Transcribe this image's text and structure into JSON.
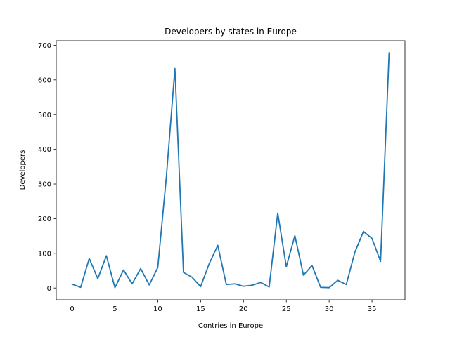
{
  "chart_data": {
    "type": "line",
    "title": "Developers by states in Europe",
    "xlabel": "Contries in Europe",
    "ylabel": "Developers",
    "xlim": [
      -1.85,
      38.85
    ],
    "ylim": [
      -34,
      713
    ],
    "xticks": [
      0,
      5,
      10,
      15,
      20,
      25,
      30,
      35
    ],
    "yticks": [
      0,
      100,
      200,
      300,
      400,
      500,
      600,
      700
    ],
    "grid": false,
    "series": [
      {
        "name": "Developers",
        "color": "#1f77b4",
        "x": [
          0,
          1,
          2,
          3,
          4,
          5,
          6,
          7,
          8,
          9,
          10,
          11,
          12,
          13,
          14,
          15,
          16,
          17,
          18,
          19,
          20,
          21,
          22,
          23,
          24,
          25,
          26,
          27,
          28,
          29,
          30,
          31,
          32,
          33,
          34,
          35,
          36,
          37
        ],
        "y": [
          11,
          2,
          85,
          27,
          93,
          1,
          52,
          12,
          56,
          9,
          59,
          320,
          633,
          45,
          31,
          4,
          70,
          123,
          10,
          12,
          5,
          8,
          16,
          3,
          216,
          61,
          151,
          37,
          65,
          2,
          1,
          22,
          10,
          103,
          163,
          143,
          77,
          678
        ]
      }
    ]
  }
}
